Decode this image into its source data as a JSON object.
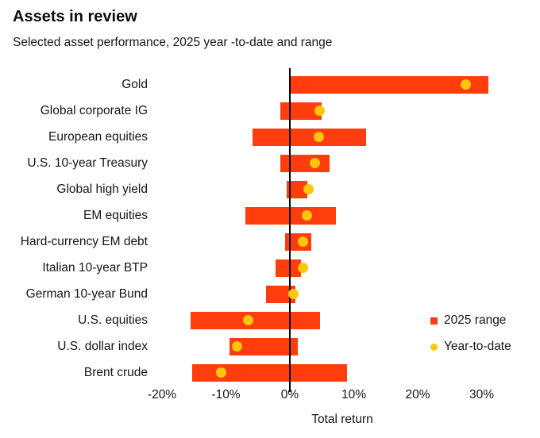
{
  "header": {
    "title": "Assets in review",
    "subtitle": "Selected asset performance, 2025 year -to-date and range"
  },
  "chart_data": {
    "type": "bar",
    "subtype": "horizontal-range-bars-with-ytd-dot",
    "title": "Assets in review",
    "subtitle": "Selected asset performance, 2025 year -to-date and range",
    "xlabel": "Total return",
    "x_ticks": [
      "-20%",
      "-10%",
      "0%",
      "10%",
      "20%",
      "30%"
    ],
    "x_tick_values": [
      -20,
      -10,
      0,
      10,
      20,
      30
    ],
    "xlim": [
      -22,
      33.5
    ],
    "grid": false,
    "zero_line": true,
    "legend_position": "right-middle",
    "legend": [
      {
        "label": "2025 range",
        "marker": "square-icon"
      },
      {
        "label": "Year-to-date",
        "marker": "dot-icon"
      }
    ],
    "colors": {
      "range_bar": "#ff3d0d",
      "ytd_dot": "#ffc60d",
      "zero_line": "#000000",
      "text": "#161616"
    },
    "series": [
      {
        "name": "Gold",
        "range": [
          0,
          31
        ],
        "ytd": 27.5
      },
      {
        "name": "Global corporate IG",
        "range": [
          -1.5,
          5
        ],
        "ytd": 4.6
      },
      {
        "name": "European equities",
        "range": [
          -5.8,
          11.9
        ],
        "ytd": 4.5
      },
      {
        "name": "U.S. 10-year Treasury",
        "range": [
          -1.5,
          6.2
        ],
        "ytd": 3.9
      },
      {
        "name": "Global high yield",
        "range": [
          -0.5,
          2.7
        ],
        "ytd": 2.9
      },
      {
        "name": "EM equities",
        "range": [
          -7,
          7.2
        ],
        "ytd": 2.7
      },
      {
        "name": "Hard-currency EM debt",
        "range": [
          -0.8,
          3.3
        ],
        "ytd": 2.1
      },
      {
        "name": "Italian 10-year BTP",
        "range": [
          -2.2,
          1.7
        ],
        "ytd": 2.0
      },
      {
        "name": "German 10-year Bund",
        "range": [
          -3.7,
          0.9
        ],
        "ytd": 0.5
      },
      {
        "name": "U.S. equities",
        "range": [
          -15.5,
          4.7
        ],
        "ytd": -6.5
      },
      {
        "name": "U.S. dollar index",
        "range": [
          -9.4,
          1.2
        ],
        "ytd": -8.3
      },
      {
        "name": "Brent crude",
        "range": [
          -15.3,
          8.9
        ],
        "ytd": -10.8
      }
    ]
  }
}
